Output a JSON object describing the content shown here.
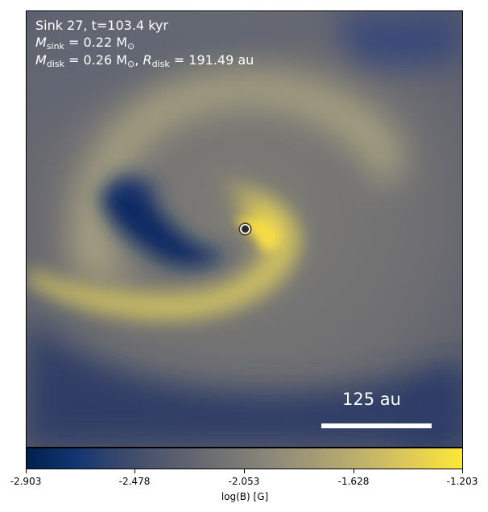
{
  "annotations": {
    "line1": "Sink 27, t=103.4 kyr",
    "m_sink_symbol": "M",
    "m_sink_sub": "sink",
    "m_sink_value": " = 0.22 M",
    "m_sink_sun": "⊙",
    "m_disk_symbol": "M",
    "m_disk_sub": "disk",
    "m_disk_value": " = 0.26 M",
    "m_disk_sun": "⊙",
    "comma": ", ",
    "r_disk_symbol": "R",
    "r_disk_sub": "disk",
    "r_disk_value": " = 191.49 au"
  },
  "scalebar": {
    "label": "125 au"
  },
  "colorbar": {
    "label": "log(B) [G]",
    "ticks": [
      "-2.903",
      "-2.478",
      "-2.053",
      "-1.628",
      "-1.203"
    ],
    "colors": [
      "#00204d",
      "#575d6d",
      "#8a8779",
      "#fee838"
    ]
  }
}
